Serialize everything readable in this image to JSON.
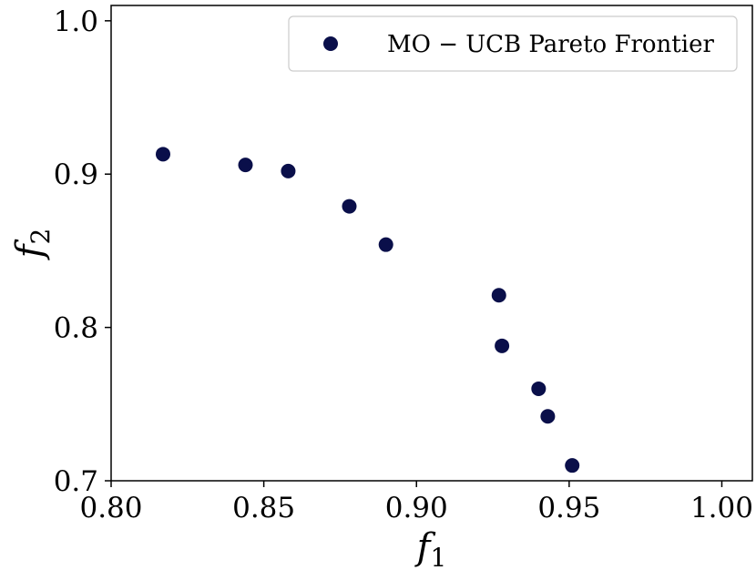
{
  "chart_data": {
    "type": "scatter",
    "title": "",
    "xlabel": "f",
    "xlabel_sub": "1",
    "ylabel": "f",
    "ylabel_sub": "2",
    "xlim": [
      0.8,
      1.01
    ],
    "ylim": [
      0.7,
      1.01
    ],
    "xticks": [
      0.8,
      0.85,
      0.9,
      0.95,
      1.0
    ],
    "xtick_labels": [
      "0.80",
      "0.85",
      "0.90",
      "0.95",
      "1.00"
    ],
    "yticks": [
      0.7,
      0.8,
      0.9,
      1.0
    ],
    "ytick_labels": [
      "0.7",
      "0.8",
      "0.9",
      "1.0"
    ],
    "grid": false,
    "legend_position": "top-right",
    "series": [
      {
        "name": "MO − UCB Pareto Frontier",
        "color": "#0a0f4a",
        "points": [
          {
            "x": 0.817,
            "y": 0.913
          },
          {
            "x": 0.844,
            "y": 0.906
          },
          {
            "x": 0.858,
            "y": 0.902
          },
          {
            "x": 0.878,
            "y": 0.879
          },
          {
            "x": 0.89,
            "y": 0.854
          },
          {
            "x": 0.927,
            "y": 0.821
          },
          {
            "x": 0.928,
            "y": 0.788
          },
          {
            "x": 0.94,
            "y": 0.76
          },
          {
            "x": 0.943,
            "y": 0.742
          },
          {
            "x": 0.951,
            "y": 0.71
          }
        ]
      }
    ]
  }
}
